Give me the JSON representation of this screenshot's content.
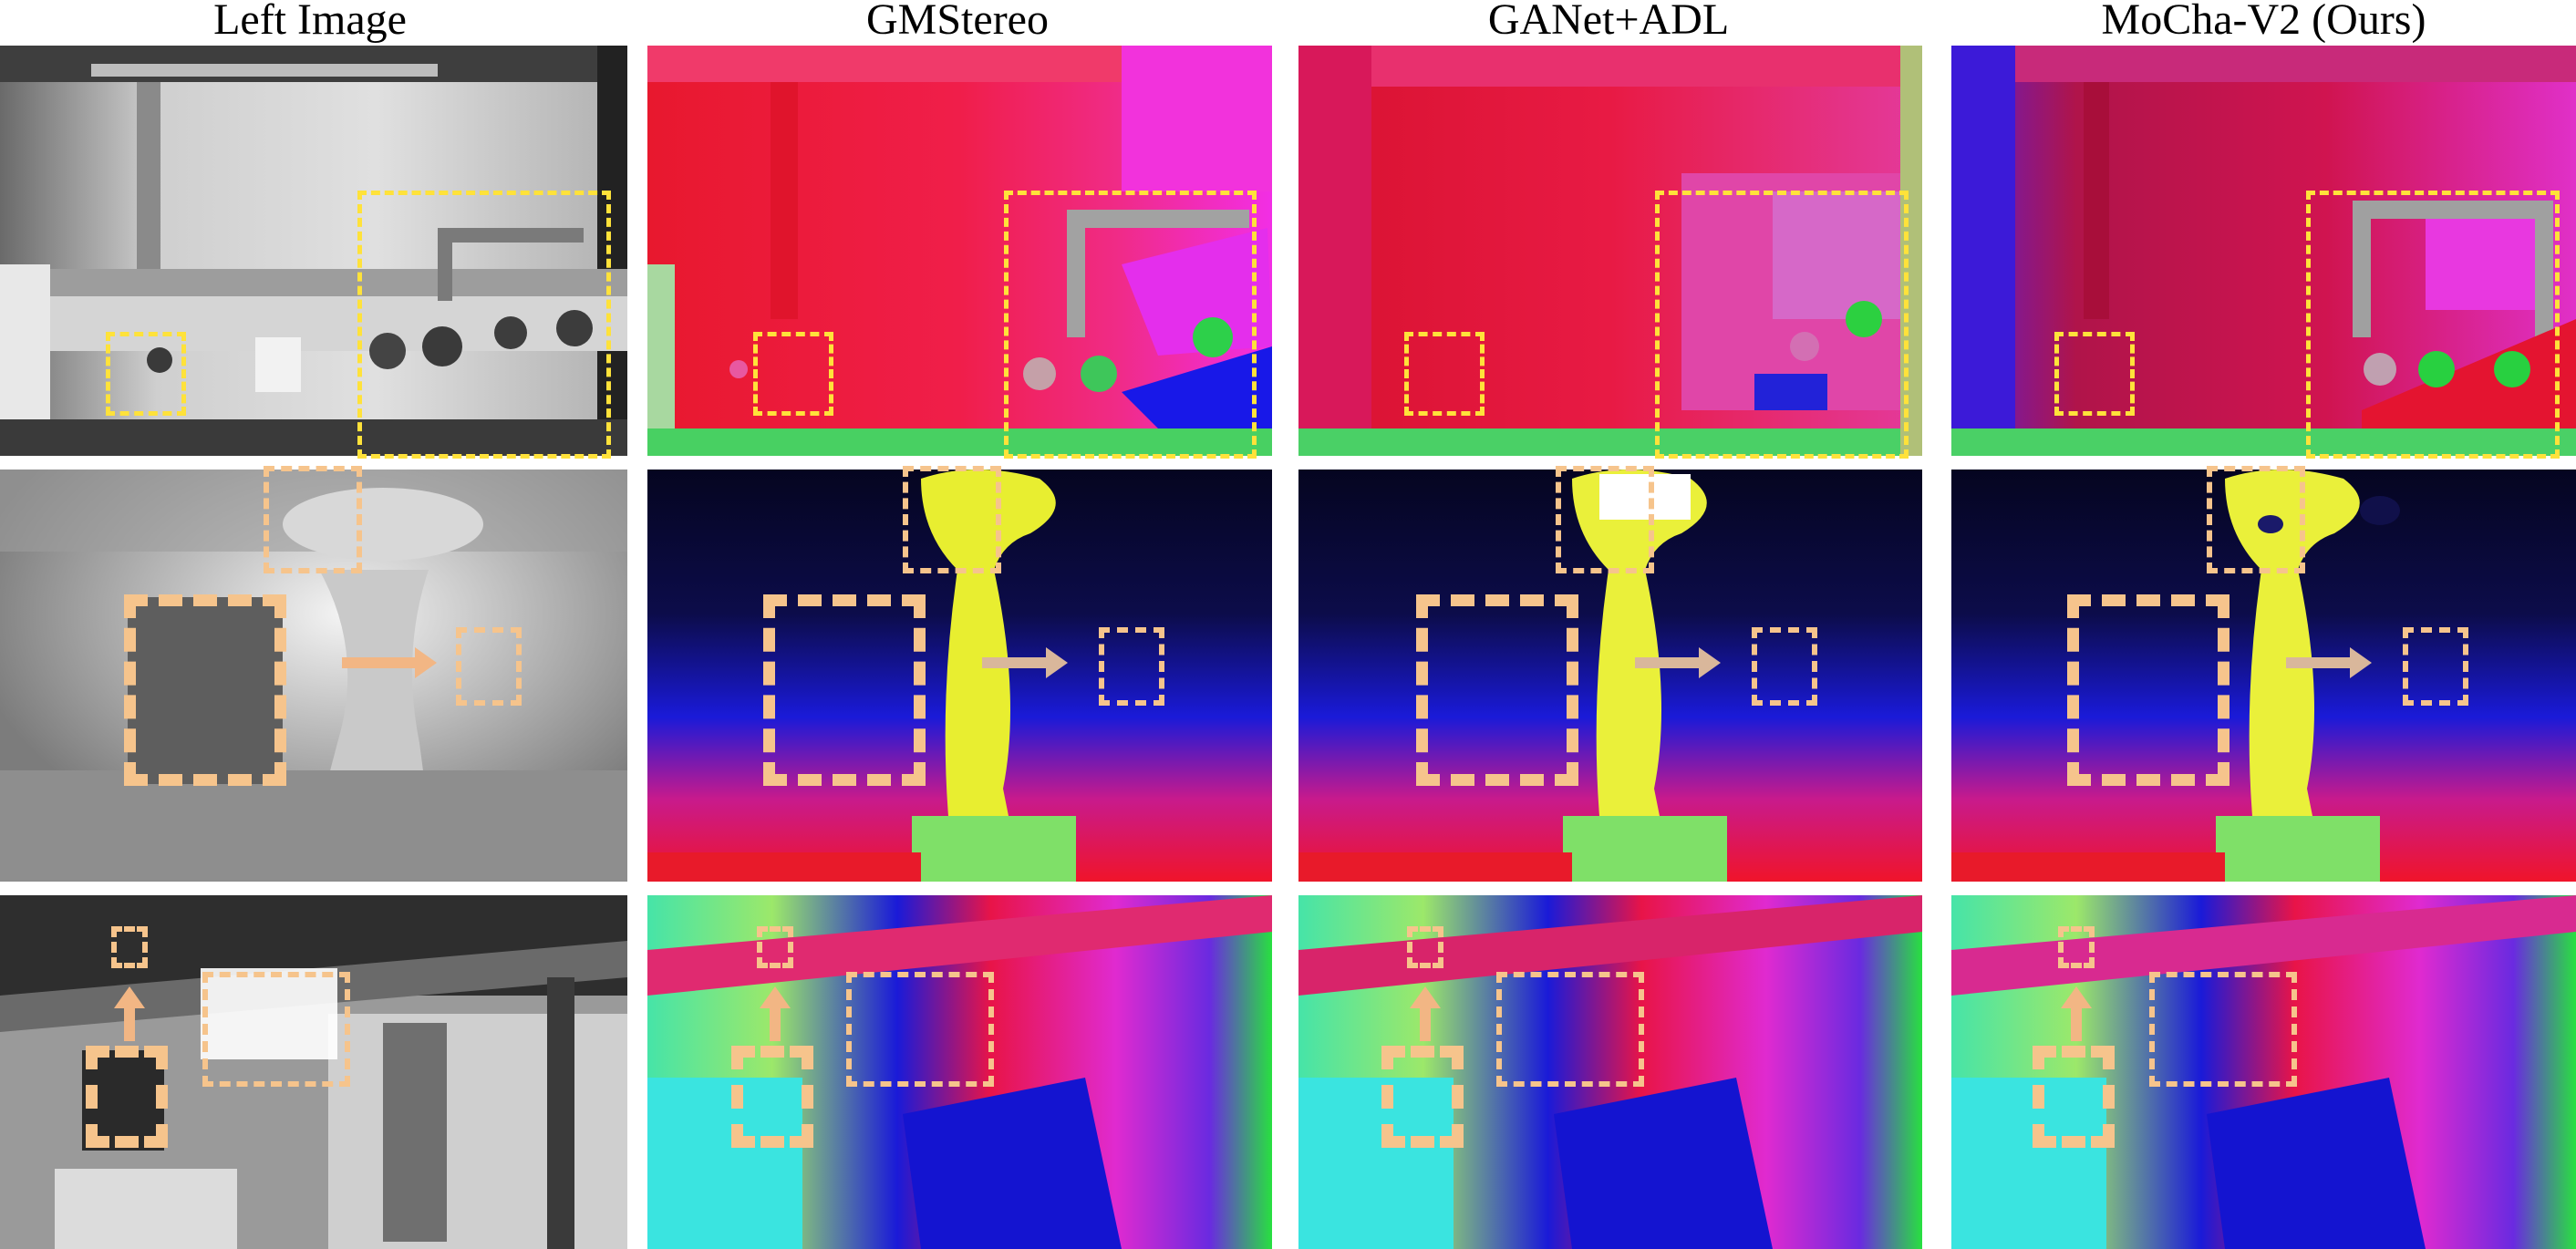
{
  "columns": [
    {
      "title": "Left Image"
    },
    {
      "title": "GMStereo"
    },
    {
      "title": "GANet+ADL"
    },
    {
      "title": "MoCha-V2 (Ours)"
    }
  ]
}
